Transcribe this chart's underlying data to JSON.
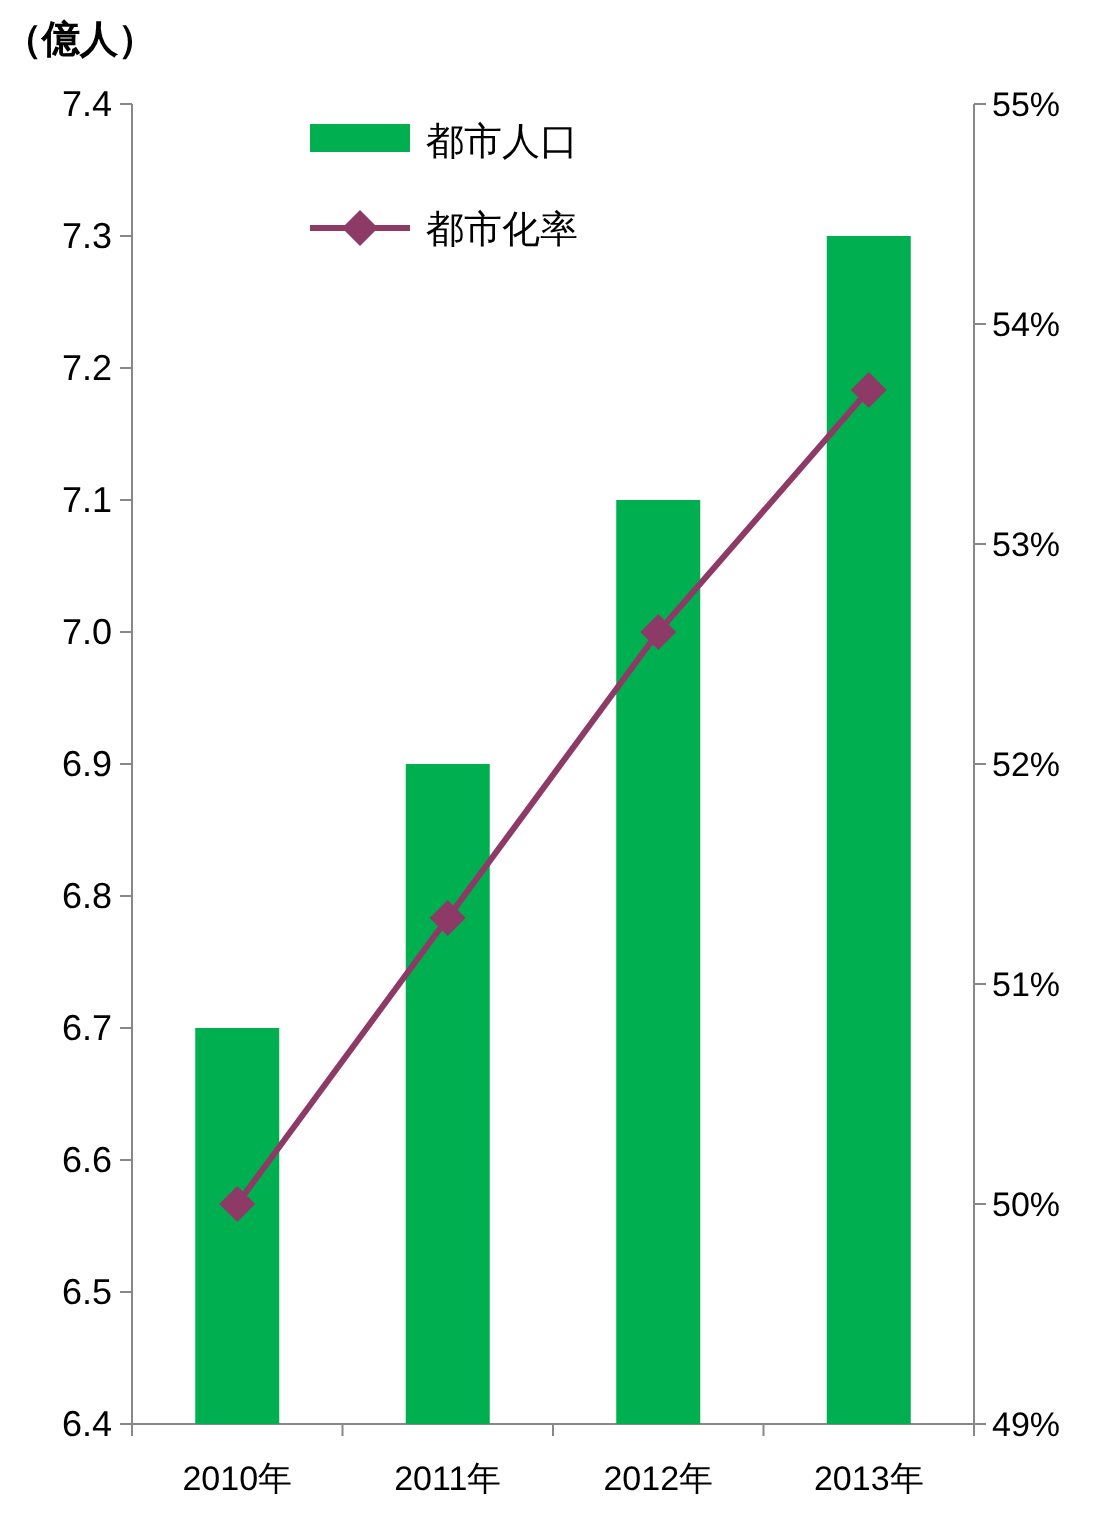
{
  "chart_data": {
    "type": "bar",
    "ylabel": "（億人）",
    "categories": [
      "2010年",
      "2011年",
      "2012年",
      "2013年"
    ],
    "series": [
      {
        "name": "都市人口",
        "color": "#00b050",
        "values": [
          6.7,
          6.9,
          7.1,
          7.3
        ]
      },
      {
        "name": "都市化率",
        "type": "line",
        "axis": "y2",
        "color": "#8e3a66",
        "marker": "diamond",
        "values": [
          50.0,
          51.3,
          52.6,
          53.7
        ]
      }
    ],
    "ylim": [
      6.4,
      7.4
    ],
    "yticks": [
      6.4,
      6.5,
      6.6,
      6.7,
      6.8,
      6.9,
      {
        "value": 7,
        "label": "7.0"
      },
      7.1,
      7.2,
      7.3,
      7.4
    ],
    "y2lim": [
      49,
      55
    ],
    "y2ticks": [
      {
        "value": 49,
        "label": "49%"
      },
      {
        "value": 50,
        "label": "50%"
      },
      {
        "value": 51,
        "label": "51%"
      },
      {
        "value": 52,
        "label": "52%"
      },
      {
        "value": 53,
        "label": "53%"
      },
      {
        "value": 54,
        "label": "54%"
      },
      {
        "value": 55,
        "label": "55%"
      }
    ],
    "legend": "top"
  }
}
